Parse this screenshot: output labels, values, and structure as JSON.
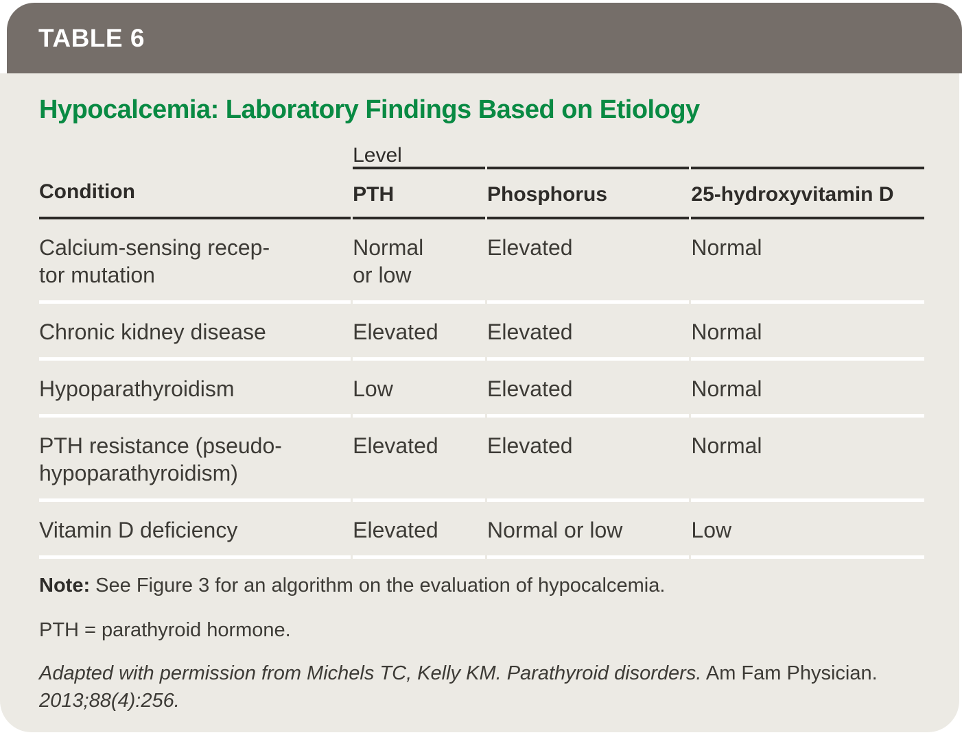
{
  "header": {
    "label": "TABLE 6"
  },
  "title": "Hypocalcemia: Laboratory Findings Based on Etiology",
  "table": {
    "level_group_label": "Level",
    "columns": {
      "condition": "Condition",
      "pth": "PTH",
      "phosphorus": "Phosphorus",
      "vitamin_d": "25-hydroxyvitamin D"
    },
    "rows": [
      {
        "condition": [
          "Calcium-sensing recep-",
          "tor mutation"
        ],
        "pth": [
          "Normal",
          "or low"
        ],
        "phosphorus": [
          "Elevated"
        ],
        "vitamin_d": [
          "Normal"
        ]
      },
      {
        "condition": [
          "Chronic kidney disease"
        ],
        "pth": [
          "Elevated"
        ],
        "phosphorus": [
          "Elevated"
        ],
        "vitamin_d": [
          "Normal"
        ]
      },
      {
        "condition": [
          "Hypoparathyroidism"
        ],
        "pth": [
          "Low"
        ],
        "phosphorus": [
          "Elevated"
        ],
        "vitamin_d": [
          "Normal"
        ]
      },
      {
        "condition": [
          "PTH resistance (pseudo-",
          "hypoparathyroidism)"
        ],
        "pth": [
          "Elevated"
        ],
        "phosphorus": [
          "Elevated"
        ],
        "vitamin_d": [
          "Normal"
        ]
      },
      {
        "condition": [
          "Vitamin D deficiency"
        ],
        "pth": [
          "Elevated"
        ],
        "phosphorus": [
          "Normal or low"
        ],
        "vitamin_d": [
          "Low"
        ]
      }
    ]
  },
  "footer": {
    "note_label": "Note:",
    "note_text": "See Figure 3 for an algorithm on the evaluation of hypocalcemia.",
    "abbreviation": "PTH = parathyroid hormone.",
    "citation_italic": "Adapted with permission from Michels TC, Kelly KM. Parathyroid disorders.",
    "citation_roman": "Am Fam Physician.",
    "citation_tail": "2013;88(4):256."
  },
  "colors": {
    "header_bar": "#756E69",
    "header_text": "#FFFFFF",
    "panel_background": "#ECEAE4",
    "title_green": "#098A43",
    "rule_dark": "#2B2926",
    "row_divider": "#FFFFFF",
    "body_text": "#3D3B36"
  }
}
